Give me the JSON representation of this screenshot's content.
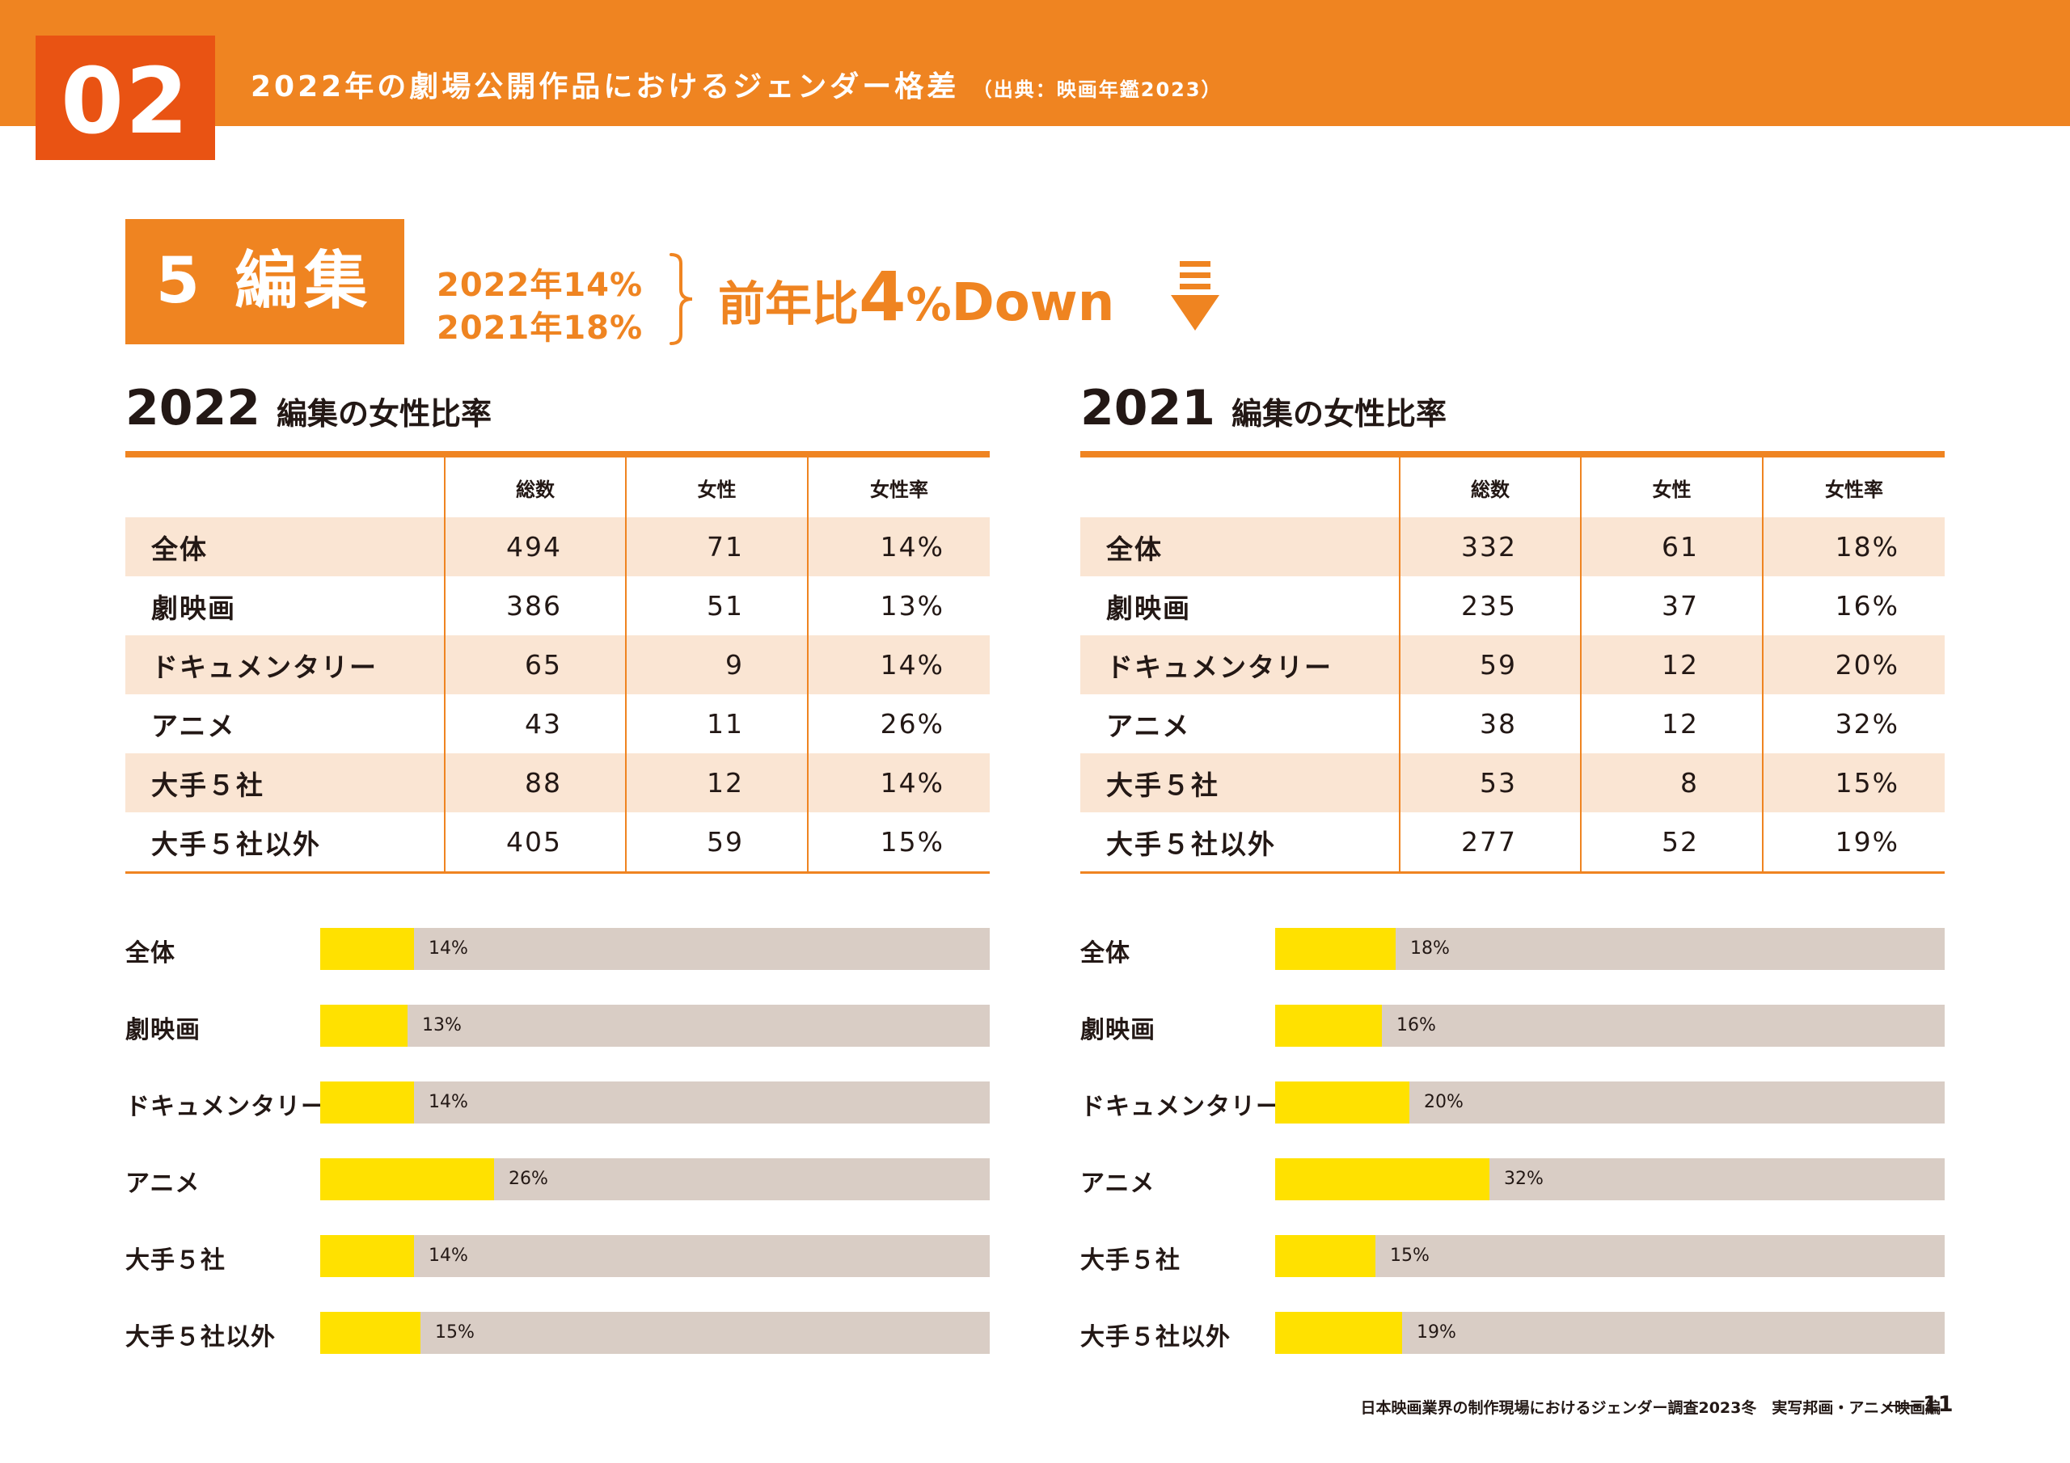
{
  "header": {
    "section_number": "02",
    "title": "2022年の劇場公開作品におけるジェンダー格差",
    "source": "（出典：映画年鑑2023）"
  },
  "category": {
    "label": "5 編集",
    "line_2022": "2022年14%",
    "line_2021": "2021年18%",
    "yoy_prefix": "前年比",
    "yoy_value": "4",
    "yoy_unit": "%",
    "yoy_direction": "Down",
    "arrow_icon": "down-arrow-icon"
  },
  "table_2022": {
    "year": "2022",
    "subtitle": "編集の女性比率",
    "columns": [
      "総数",
      "女性",
      "女性率"
    ],
    "rows": [
      {
        "label": "全体",
        "total": "494",
        "female": "71",
        "rate": "14%"
      },
      {
        "label": "劇映画",
        "total": "386",
        "female": "51",
        "rate": "13%"
      },
      {
        "label": "ドキュメンタリー",
        "total": "65",
        "female": "9",
        "rate": "14%"
      },
      {
        "label": "アニメ",
        "total": "43",
        "female": "11",
        "rate": "26%"
      },
      {
        "label": "大手５社",
        "total": "88",
        "female": "12",
        "rate": "14%"
      },
      {
        "label": "大手５社以外",
        "total": "405",
        "female": "59",
        "rate": "15%"
      }
    ]
  },
  "table_2021": {
    "year": "2021",
    "subtitle": "編集の女性比率",
    "columns": [
      "総数",
      "女性",
      "女性率"
    ],
    "rows": [
      {
        "label": "全体",
        "total": "332",
        "female": "61",
        "rate": "18%"
      },
      {
        "label": "劇映画",
        "total": "235",
        "female": "37",
        "rate": "16%"
      },
      {
        "label": "ドキュメンタリー",
        "total": "59",
        "female": "12",
        "rate": "20%"
      },
      {
        "label": "アニメ",
        "total": "38",
        "female": "12",
        "rate": "32%"
      },
      {
        "label": "大手５社",
        "total": "53",
        "female": "8",
        "rate": "15%"
      },
      {
        "label": "大手５社以外",
        "total": "277",
        "female": "52",
        "rate": "19%"
      }
    ]
  },
  "chart_data": [
    {
      "type": "bar",
      "orientation": "horizontal",
      "categories": [
        "全体",
        "劇映画",
        "ドキュメンタリー",
        "アニメ",
        "大手５社",
        "大手５社以外"
      ],
      "values": [
        14,
        13,
        14,
        26,
        14,
        15
      ],
      "value_labels": [
        "14%",
        "13%",
        "14%",
        "26%",
        "14%",
        "15%"
      ],
      "xlim": [
        0,
        100
      ],
      "colors": {
        "fill": "#ffe100",
        "track": "#d9cdc5"
      }
    },
    {
      "type": "bar",
      "orientation": "horizontal",
      "categories": [
        "全体",
        "劇映画",
        "ドキュメンタリー",
        "アニメ",
        "大手５社",
        "大手５社以外"
      ],
      "values": [
        18,
        16,
        20,
        32,
        15,
        19
      ],
      "value_labels": [
        "18%",
        "16%",
        "20%",
        "32%",
        "15%",
        "19%"
      ],
      "xlim": [
        0,
        100
      ],
      "colors": {
        "fill": "#ffe100",
        "track": "#d9cdc5"
      }
    }
  ],
  "footer": {
    "text": "日本映画業界の制作現場におけるジェンダー調査2023冬　実写邦画・アニメ映画編",
    "page": "11"
  },
  "colors": {
    "accent": "#ef8421",
    "section_box": "#e95313",
    "row_shade": "#fae5d3",
    "bar_fill": "#ffe100",
    "bar_track": "#d9cdc5"
  }
}
